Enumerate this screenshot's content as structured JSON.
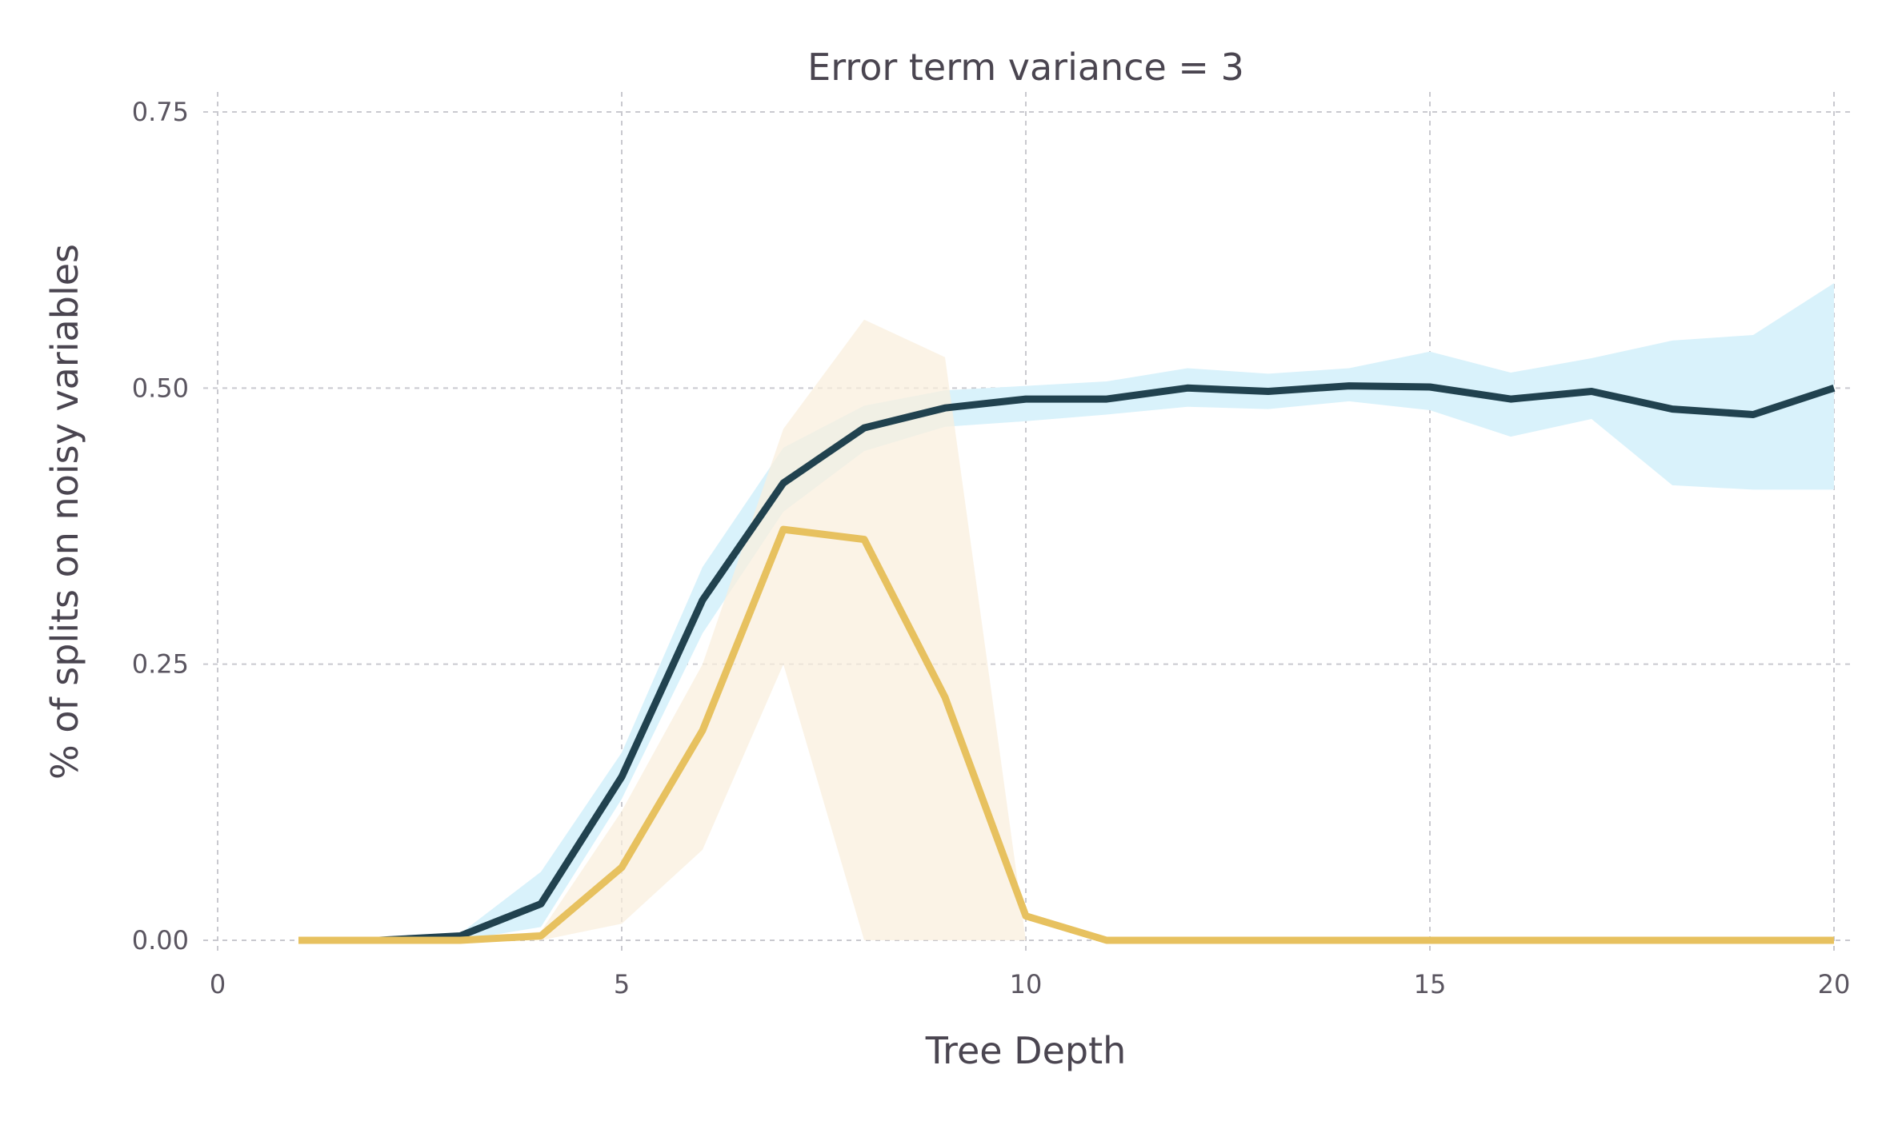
{
  "chart_data": {
    "type": "line",
    "title": "Error term variance = 3",
    "xlabel": "Tree Depth",
    "ylabel": "% of splits on noisy variables",
    "xlim": [
      0,
      20
    ],
    "ylim": [
      0,
      0.75
    ],
    "xticks": [
      0,
      5,
      10,
      15,
      20
    ],
    "xtick_labels": [
      "0",
      "5",
      "10",
      "15",
      "20"
    ],
    "yticks": [
      0,
      0.25,
      0.5,
      0.75
    ],
    "ytick_labels": [
      "0.00",
      "0.25",
      "0.50",
      "0.75"
    ],
    "grid": true,
    "x": [
      1,
      2,
      3,
      4,
      5,
      6,
      7,
      8,
      9,
      10,
      11,
      12,
      13,
      14,
      15,
      16,
      17,
      18,
      19,
      20
    ],
    "series": [
      {
        "color": "#21424f",
        "band_color": "#d9f2fb",
        "values": [
          0.0,
          0.0,
          0.004,
          0.033,
          0.148,
          0.308,
          0.414,
          0.464,
          0.482,
          0.49,
          0.49,
          0.5,
          0.497,
          0.502,
          0.501,
          0.49,
          0.497,
          0.481,
          0.476,
          0.5
        ],
        "lower": [
          0.0,
          0.0,
          0.0,
          0.012,
          0.128,
          0.278,
          0.388,
          0.443,
          0.465,
          0.47,
          0.476,
          0.483,
          0.481,
          0.488,
          0.48,
          0.456,
          0.472,
          0.412,
          0.408,
          0.408
        ],
        "upper": [
          0.0,
          0.0,
          0.006,
          0.062,
          0.17,
          0.338,
          0.446,
          0.484,
          0.498,
          0.502,
          0.506,
          0.518,
          0.513,
          0.518,
          0.533,
          0.514,
          0.527,
          0.543,
          0.548,
          0.595
        ]
      },
      {
        "color": "#e7c15f",
        "band_color": "#f9eedd",
        "values": [
          0.0,
          0.0,
          0.0,
          0.004,
          0.066,
          0.19,
          0.372,
          0.363,
          0.22,
          0.022,
          0.0,
          0.0,
          0.0,
          0.0,
          0.0,
          0.0,
          0.0,
          0.0,
          0.0,
          0.0
        ],
        "lower": [
          0.0,
          0.0,
          0.0,
          0.0,
          0.015,
          0.082,
          0.25,
          0.0,
          0.0,
          0.0,
          0.0,
          0.0,
          0.0,
          0.0,
          0.0,
          0.0,
          0.0,
          0.0,
          0.0,
          0.0
        ],
        "upper": [
          0.0,
          0.0,
          0.0,
          0.008,
          0.117,
          0.25,
          0.463,
          0.562,
          0.528,
          0.0,
          0.0,
          0.0,
          0.0,
          0.0,
          0.0,
          0.0,
          0.0,
          0.0,
          0.0,
          0.0
        ]
      }
    ]
  }
}
